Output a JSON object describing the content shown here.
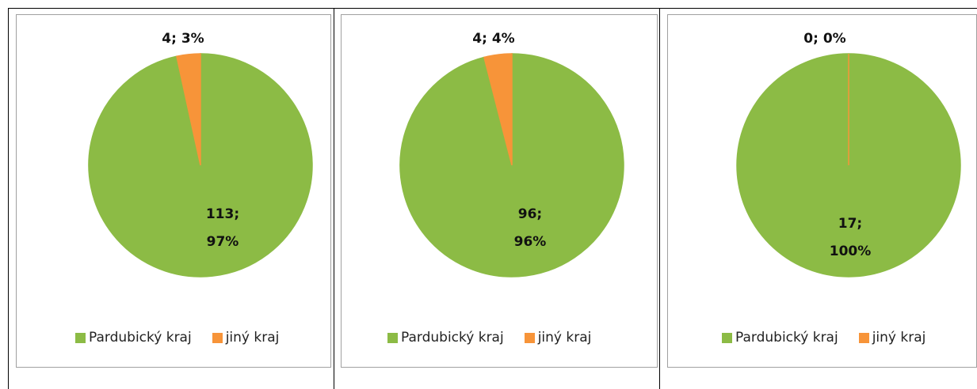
{
  "chart_data": [
    {
      "type": "pie",
      "categories": [
        "Pardubický kraj",
        "jiný kraj"
      ],
      "values": [
        113,
        4
      ],
      "value_labels": [
        "113; 97%",
        "4; 3%"
      ],
      "colors": [
        "#8cbb45",
        "#f79439"
      ]
    },
    {
      "type": "pie",
      "categories": [
        "Pardubický kraj",
        "jiný kraj"
      ],
      "values": [
        96,
        4
      ],
      "value_labels": [
        "96; 96%",
        "4; 4%"
      ],
      "colors": [
        "#8cbb45",
        "#f79439"
      ]
    },
    {
      "type": "pie",
      "categories": [
        "Pardubický kraj",
        "jiný kraj"
      ],
      "values": [
        17,
        0
      ],
      "value_labels": [
        "17; 100%",
        "0; 0%"
      ],
      "colors": [
        "#8cbb45",
        "#f79439"
      ]
    }
  ]
}
